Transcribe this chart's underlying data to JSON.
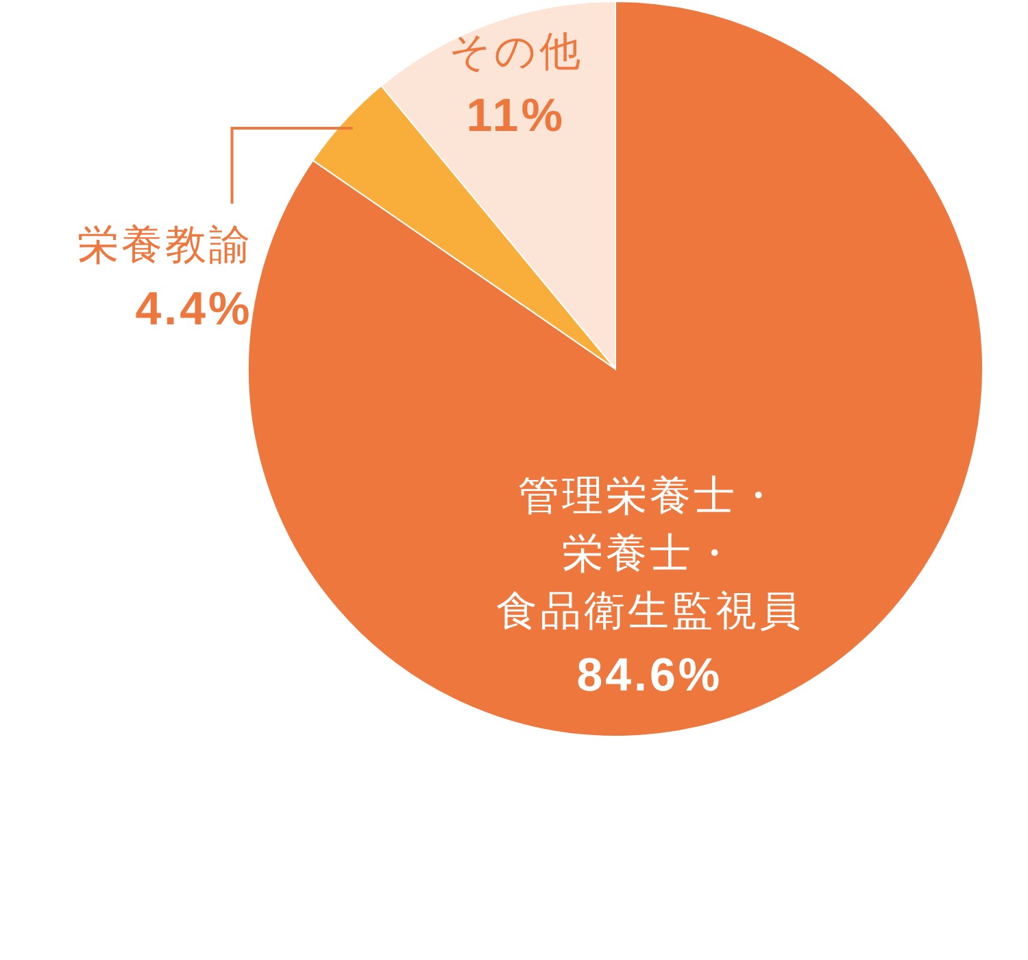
{
  "chart_data": {
    "type": "pie",
    "categories": [
      "管理栄養士・栄養士・食品衛生監視員",
      "栄養教諭",
      "その他"
    ],
    "values": [
      84.6,
      4.4,
      11
    ],
    "colors": [
      "#ed773d",
      "#f9ae3b",
      "#fce5d6"
    ],
    "value_labels": [
      "84.6%",
      "4.4%",
      "11%"
    ]
  }
}
